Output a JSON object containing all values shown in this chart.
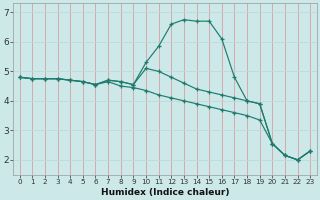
{
  "xlabel": "Humidex (Indice chaleur)",
  "ylabel": "",
  "bg_color": "#cce8e8",
  "plot_bg_color": "#cce8e8",
  "line_color": "#1e7b6e",
  "grid_color_v": "#d9a0a0",
  "grid_color_h": "#c0d8d8",
  "xlim": [
    -0.5,
    23.5
  ],
  "ylim": [
    1.5,
    7.3
  ],
  "xticks": [
    0,
    1,
    2,
    3,
    4,
    5,
    6,
    7,
    8,
    9,
    10,
    11,
    12,
    13,
    14,
    15,
    16,
    17,
    18,
    19,
    20,
    21,
    22,
    23
  ],
  "yticks": [
    2,
    3,
    4,
    5,
    6,
    7
  ],
  "series": [
    [
      4.8,
      4.75,
      4.75,
      4.75,
      4.7,
      4.65,
      4.55,
      4.7,
      4.65,
      4.55,
      5.3,
      5.85,
      6.6,
      6.75,
      6.7,
      6.7,
      6.1,
      4.8,
      4.0,
      3.9,
      2.55,
      2.15,
      2.0,
      2.3
    ],
    [
      4.8,
      4.75,
      4.75,
      4.75,
      4.7,
      4.65,
      4.55,
      4.7,
      4.65,
      4.55,
      5.1,
      5.0,
      4.8,
      4.6,
      4.4,
      4.3,
      4.2,
      4.1,
      4.0,
      3.9,
      2.55,
      2.15,
      2.0,
      2.3
    ],
    [
      4.8,
      4.75,
      4.75,
      4.75,
      4.7,
      4.65,
      4.55,
      4.65,
      4.5,
      4.45,
      4.35,
      4.2,
      4.1,
      4.0,
      3.9,
      3.8,
      3.7,
      3.6,
      3.5,
      3.35,
      2.55,
      2.15,
      2.0,
      2.3
    ]
  ]
}
